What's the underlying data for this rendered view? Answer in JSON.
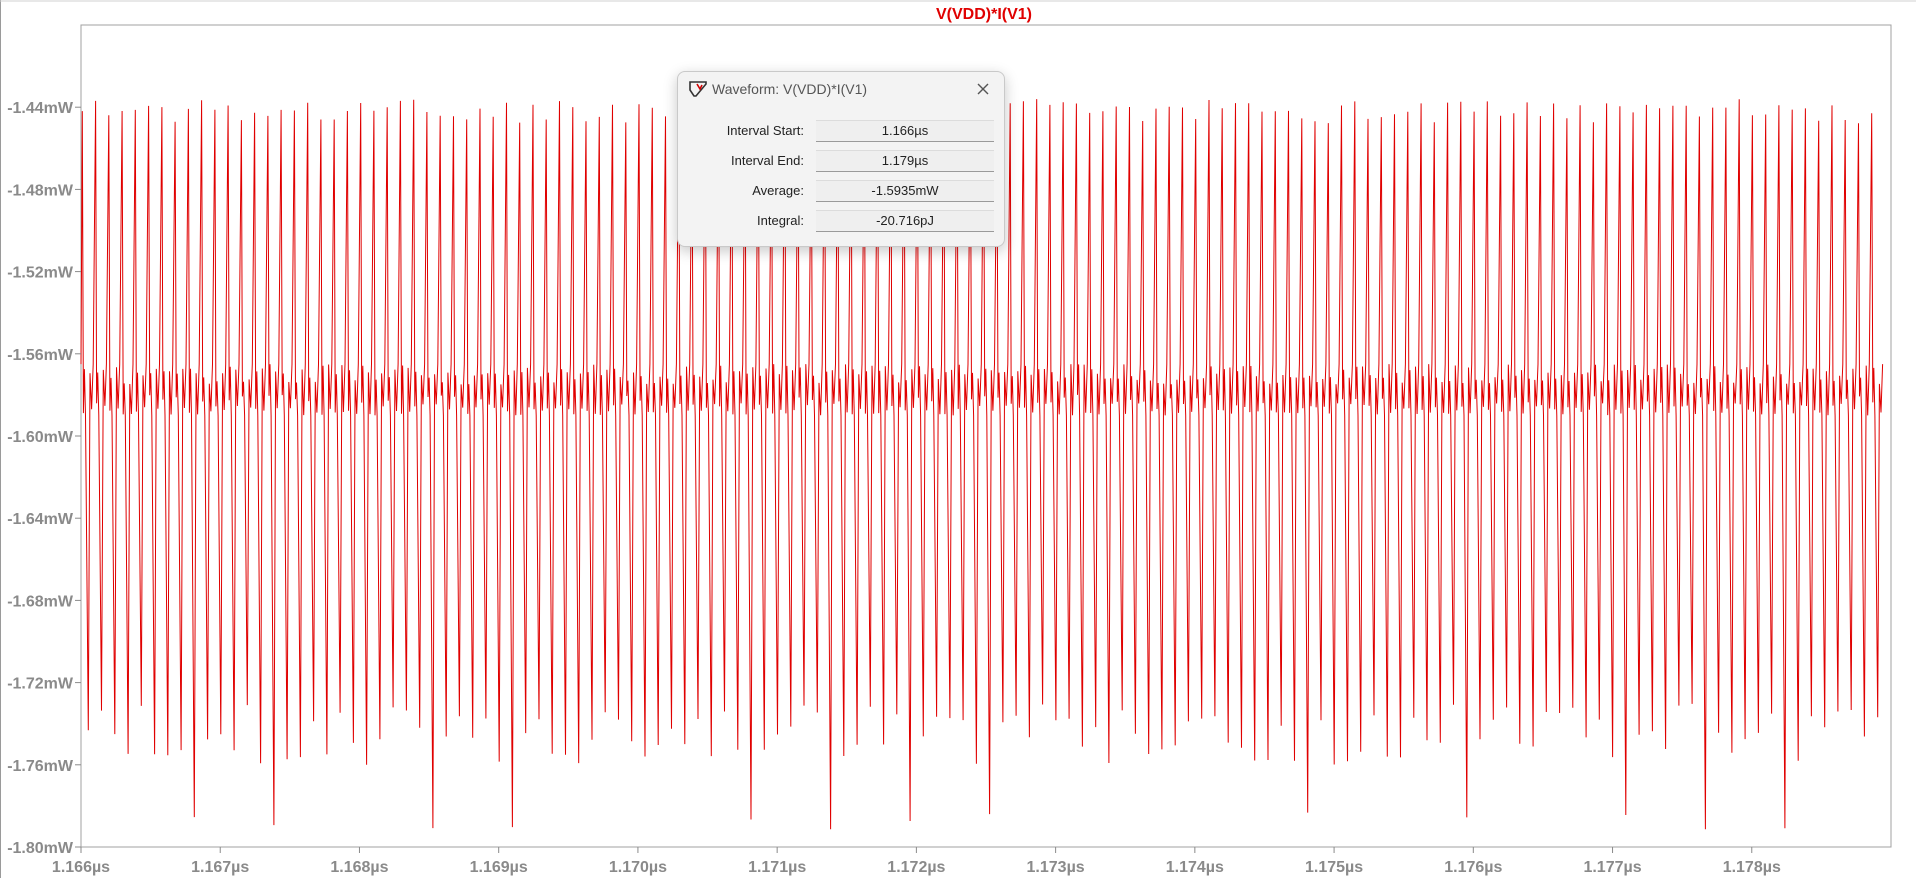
{
  "chart_data": {
    "type": "line",
    "title": "V(VDD)*I(V1)",
    "xlabel": "",
    "ylabel": "",
    "x_unit": "µs",
    "y_unit": "mW",
    "xlim": [
      1.166,
      1.179
    ],
    "ylim": [
      -1.8,
      -1.4
    ],
    "x_ticks": [
      "1.166µs",
      "1.167µs",
      "1.168µs",
      "1.169µs",
      "1.170µs",
      "1.171µs",
      "1.172µs",
      "1.173µs",
      "1.174µs",
      "1.175µs",
      "1.176µs",
      "1.177µs",
      "1.178µs"
    ],
    "y_ticks": [
      "-1.44mW",
      "-1.48mW",
      "-1.52mW",
      "-1.56mW",
      "-1.60mW",
      "-1.64mW",
      "-1.68mW",
      "-1.72mW",
      "-1.76mW",
      "-1.80mW"
    ],
    "series": [
      {
        "color": "#e00000",
        "oscillation_period_us": 9.52e-05,
        "upper_spike_mW": -1.436,
        "lower_spike_mW": -1.76,
        "lowest_spike_mW": -1.792,
        "secondary_high_mW": -1.565,
        "secondary_low_mW": -1.59,
        "average_mW": -1.5935
      }
    ],
    "grid": false,
    "legend": "none"
  },
  "dialog": {
    "title": "Waveform: V(VDD)*I(V1)",
    "fields": [
      {
        "label": "Interval Start:",
        "value": "1.166µs"
      },
      {
        "label": "Interval End:",
        "value": "1.179µs"
      },
      {
        "label": "Average:",
        "value": "-1.5935mW"
      },
      {
        "label": "Integral:",
        "value": "-20.716pJ"
      }
    ]
  },
  "icons": {
    "app": "ltspice-waveform-icon",
    "close": "close-icon"
  },
  "colors": {
    "trace": "#e00000",
    "axis": "#8a8a8a",
    "title": "#e00000"
  }
}
